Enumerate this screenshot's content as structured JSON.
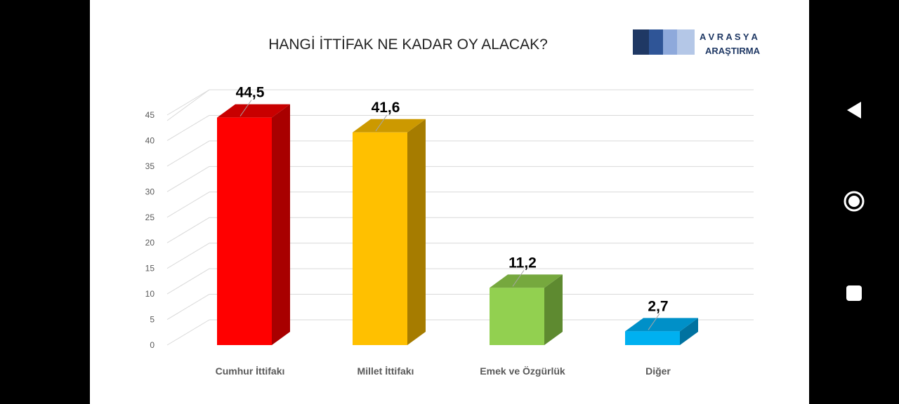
{
  "chart_data": {
    "type": "bar",
    "title": "HANGİ İTTİFAK NE KADAR OY ALACAK?",
    "categories": [
      "Cumhur İttifakı",
      "Millet İttifakı",
      "Emek ve Özgürlük",
      "Diğer"
    ],
    "values": [
      44.5,
      41.6,
      11.2,
      2.7
    ],
    "value_labels": [
      "44,5",
      "41,6",
      "11,2",
      "2,7"
    ],
    "ylim": [
      0,
      45
    ],
    "yticks": [
      0,
      5,
      10,
      15,
      20,
      25,
      30,
      35,
      40,
      45
    ],
    "grid": true,
    "style": "3d-column",
    "colors": [
      {
        "front": "#FF0000",
        "side": "#A80000",
        "top": "#C80000"
      },
      {
        "front": "#FFC000",
        "side": "#A67C00",
        "top": "#CC9900"
      },
      {
        "front": "#92D050",
        "side": "#5E8A30",
        "top": "#76A83E"
      },
      {
        "front": "#00B0F0",
        "side": "#0072A0",
        "top": "#0090C8"
      }
    ]
  },
  "logo": {
    "line1": "A V R A S Y A",
    "line2": "ARAŞTIRMA",
    "colors": [
      "#1F3864",
      "#2F5597",
      "#8EA9DB",
      "#B4C7E7"
    ]
  },
  "nav": {
    "buttons": [
      "back-icon",
      "home-icon",
      "recents-icon"
    ]
  }
}
